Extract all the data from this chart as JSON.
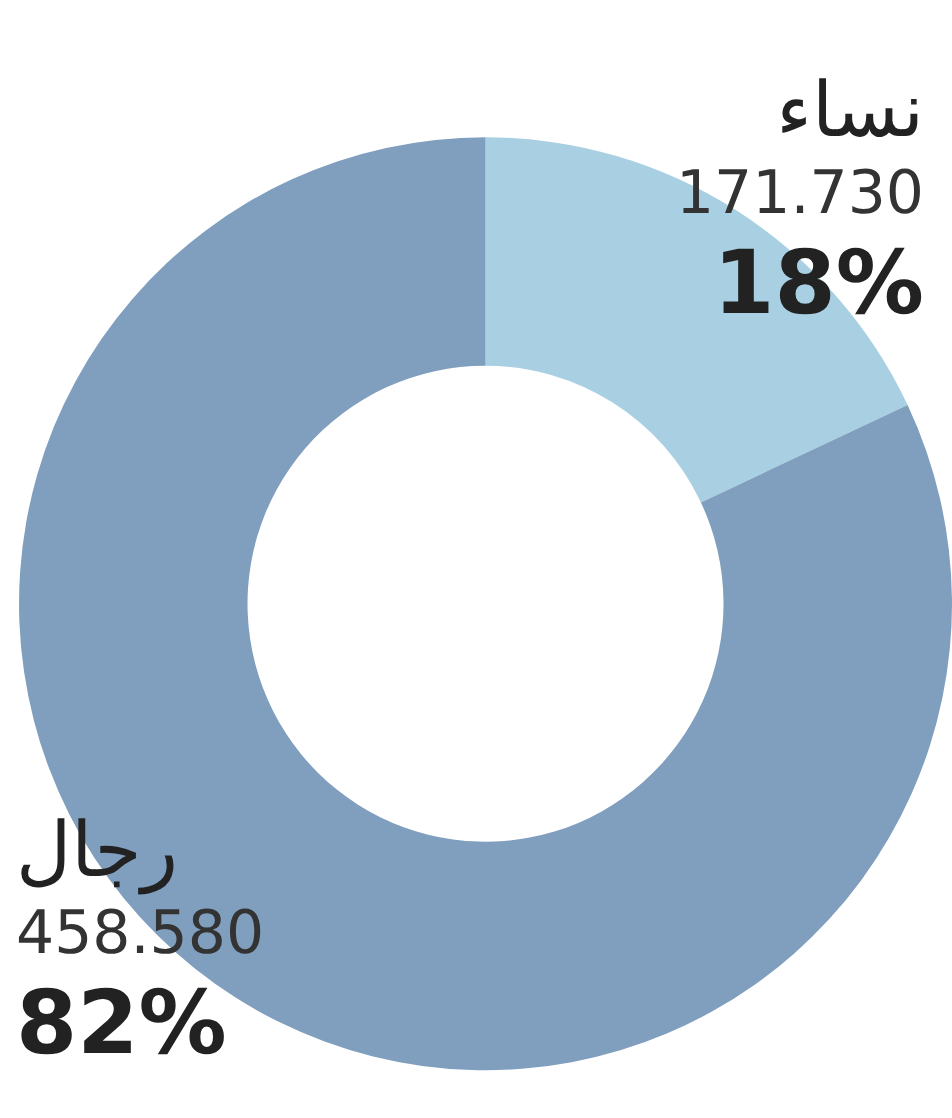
{
  "chart_data": {
    "type": "donut",
    "categories": [
      "نساء",
      "رجال"
    ],
    "values": [
      18,
      82
    ],
    "colors": [
      "#a9d0e2",
      "#809fbe"
    ],
    "value_labels": [
      "171.730\n18%",
      "458.580\n82%"
    ],
    "legend": false
  }
}
